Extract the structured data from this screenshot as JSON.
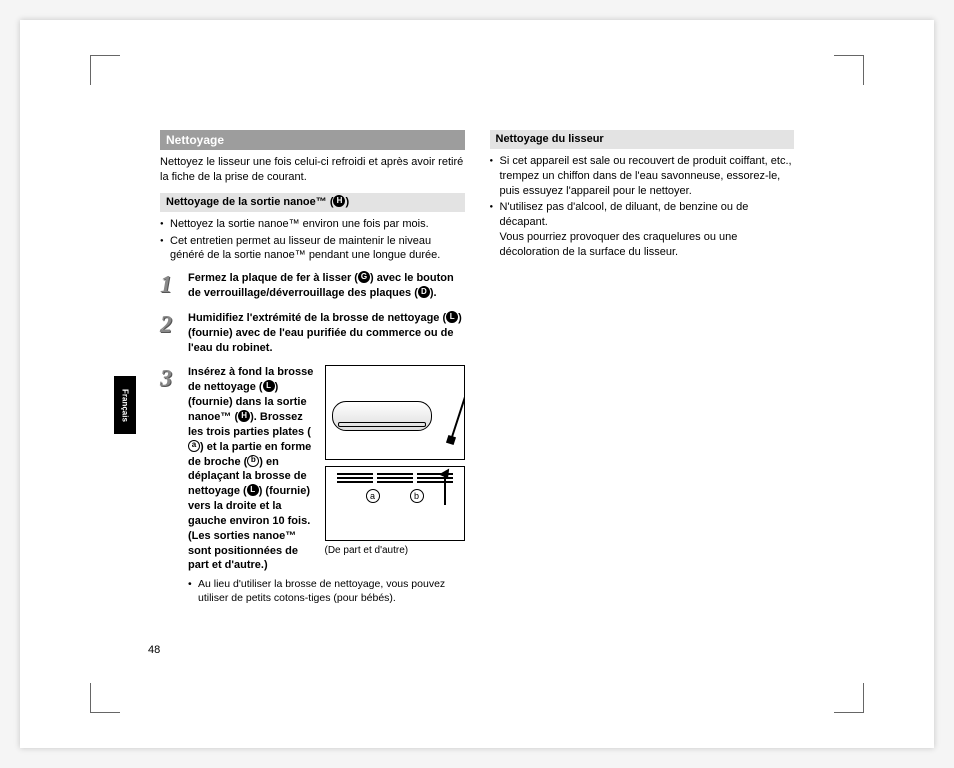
{
  "page": {
    "number": "48",
    "language_tab": "Français"
  },
  "left": {
    "heading": "Nettoyage",
    "intro": "Nettoyez le lisseur une fois celui-ci refroidi et après avoir retiré la fiche de la prise de courant.",
    "subheading": "Nettoyage de la sortie nanoe™ (",
    "subheading_ref": "H",
    "subheading_close": ")",
    "bullets": [
      "Nettoyez la sortie nanoe™ environ une fois par mois.",
      "Cet entretien permet au lisseur de maintenir le niveau généré de la sortie nanoe™ pendant une longue durée."
    ],
    "step1": {
      "pre": "Fermez la plaque de fer à lisser (",
      "ref1": "G",
      "mid": ") avec le bouton de verrouillage/déverrouillage des plaques (",
      "ref2": "D",
      "post": ")."
    },
    "step2": {
      "pre": "Humidifiez l'extrémité de la brosse de nettoyage (",
      "ref1": "L",
      "post": ") (fournie) avec de l'eau purifiée du commerce ou de l'eau du robinet."
    },
    "step3": {
      "t1": "Insérez à fond la brosse de nettoyage (",
      "r1": "L",
      "t2": ") (fournie) dans la sortie nanoe™ (",
      "r2": "H",
      "t3": "). Brossez les trois parties plates (",
      "r3": "a",
      "t4": ") et la partie en forme de broche (",
      "r4": "b",
      "t5": ") en déplaçant la brosse de nettoyage (",
      "r5": "L",
      "t6": ") (fournie) vers la droite et la gauche environ 10 fois. (Les sorties nanoe™ sont positionnées de part et d'autre.)"
    },
    "figure": {
      "caption": "(De part et d'autre)",
      "label_a": "a",
      "label_b": "b"
    },
    "sub_note": "Au lieu d'utiliser la brosse de nettoyage, vous pouvez utiliser de petits cotons-tiges (pour bébés)."
  },
  "right": {
    "subheading": "Nettoyage du lisseur",
    "bullets": [
      "Si cet appareil est sale ou recouvert de produit coiffant, etc., trempez un chiffon dans de l'eau savonneuse, essorez-le, puis essuyez l'appareil pour le nettoyer.",
      "N'utilisez pas d'alcool, de diluant, de benzine ou de décapant.\nVous pourriez provoquer des craquelures ou une décoloration de la surface du lisseur."
    ]
  },
  "colors": {
    "heading_bg": "#9d9d9d",
    "subheading_bg": "#e3e3e3",
    "tab_bg": "#000000"
  }
}
